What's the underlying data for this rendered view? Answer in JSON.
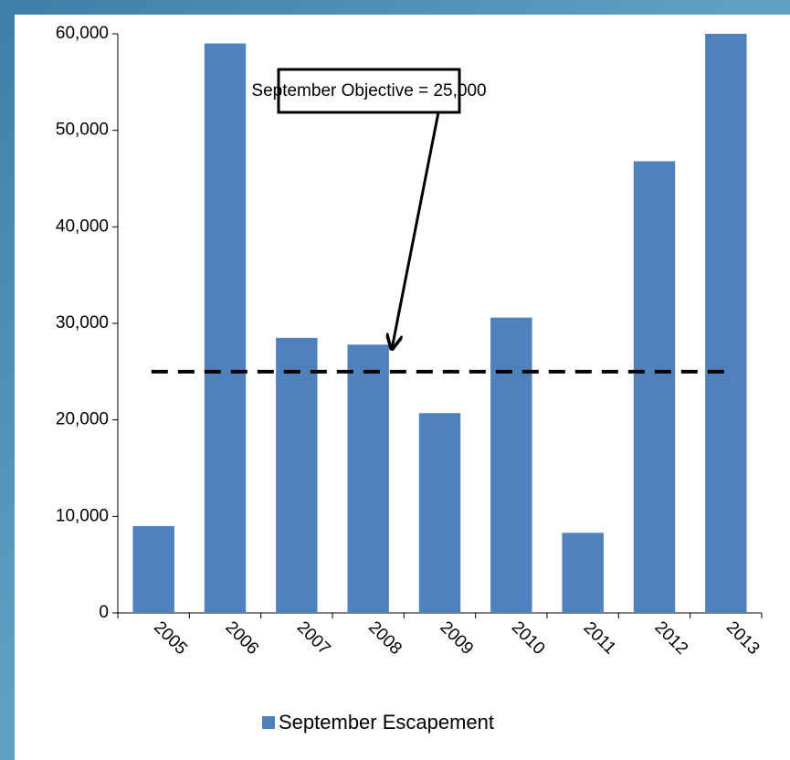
{
  "chart_data": {
    "type": "bar",
    "categories": [
      "2005",
      "2006",
      "2007",
      "2008",
      "2009",
      "2010",
      "2011",
      "2012",
      "2013"
    ],
    "series": [
      {
        "name": "September Escapement",
        "color": "#4f81bd",
        "values": [
          9000,
          59000,
          28500,
          27800,
          20700,
          30600,
          8300,
          46800,
          60000
        ]
      }
    ],
    "ylim": [
      0,
      60000
    ],
    "yticks": [
      0,
      {
        "value": 10000,
        "label": "10,000"
      },
      {
        "value": 20000,
        "label": "20,000"
      },
      {
        "value": 30000,
        "label": "30,000"
      },
      {
        "value": 40000,
        "label": "40,000"
      },
      {
        "value": 50000,
        "label": "50,000"
      },
      {
        "value": 60000,
        "label": "60,000"
      }
    ],
    "reference_line": {
      "value": 25000,
      "label": "September Objective = 25,000",
      "color": "#000000"
    },
    "legend": "bottom"
  }
}
